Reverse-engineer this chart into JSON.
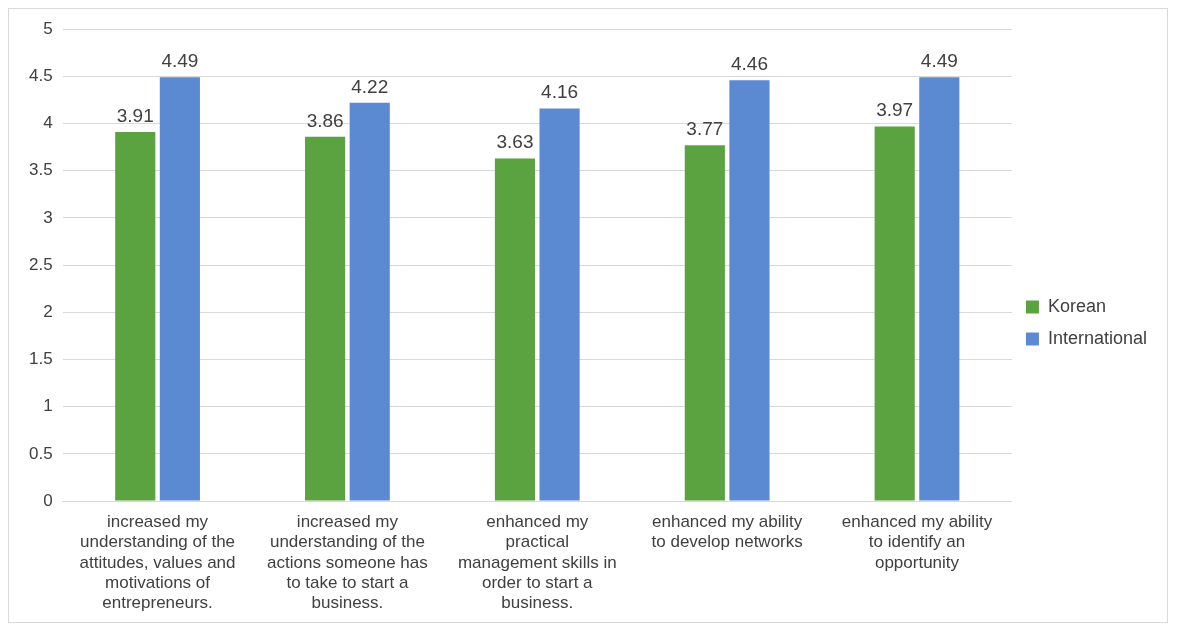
{
  "chart_data": {
    "type": "bar",
    "categories": [
      "increased my understanding of the attitudes, values and motivations of entrepreneurs.",
      "increased my understanding of the actions someone has to take to start a business.",
      "enhanced my practical management skills in order to start a business.",
      "enhanced my ability to develop networks",
      "enhanced my ability to identify an opportunity"
    ],
    "series": [
      {
        "name": "Korean",
        "color": "#5aa340",
        "values": [
          3.91,
          3.86,
          3.63,
          3.77,
          3.97
        ]
      },
      {
        "name": "International",
        "color": "#5b89d2",
        "values": [
          4.49,
          4.22,
          4.16,
          4.46,
          4.49
        ]
      }
    ],
    "ylim": [
      0,
      5
    ],
    "yticks": [
      0,
      0.5,
      1,
      1.5,
      2,
      2.5,
      3,
      3.5,
      4,
      4.5,
      5
    ],
    "grid": "y",
    "legend": "right",
    "data_labels": true
  }
}
